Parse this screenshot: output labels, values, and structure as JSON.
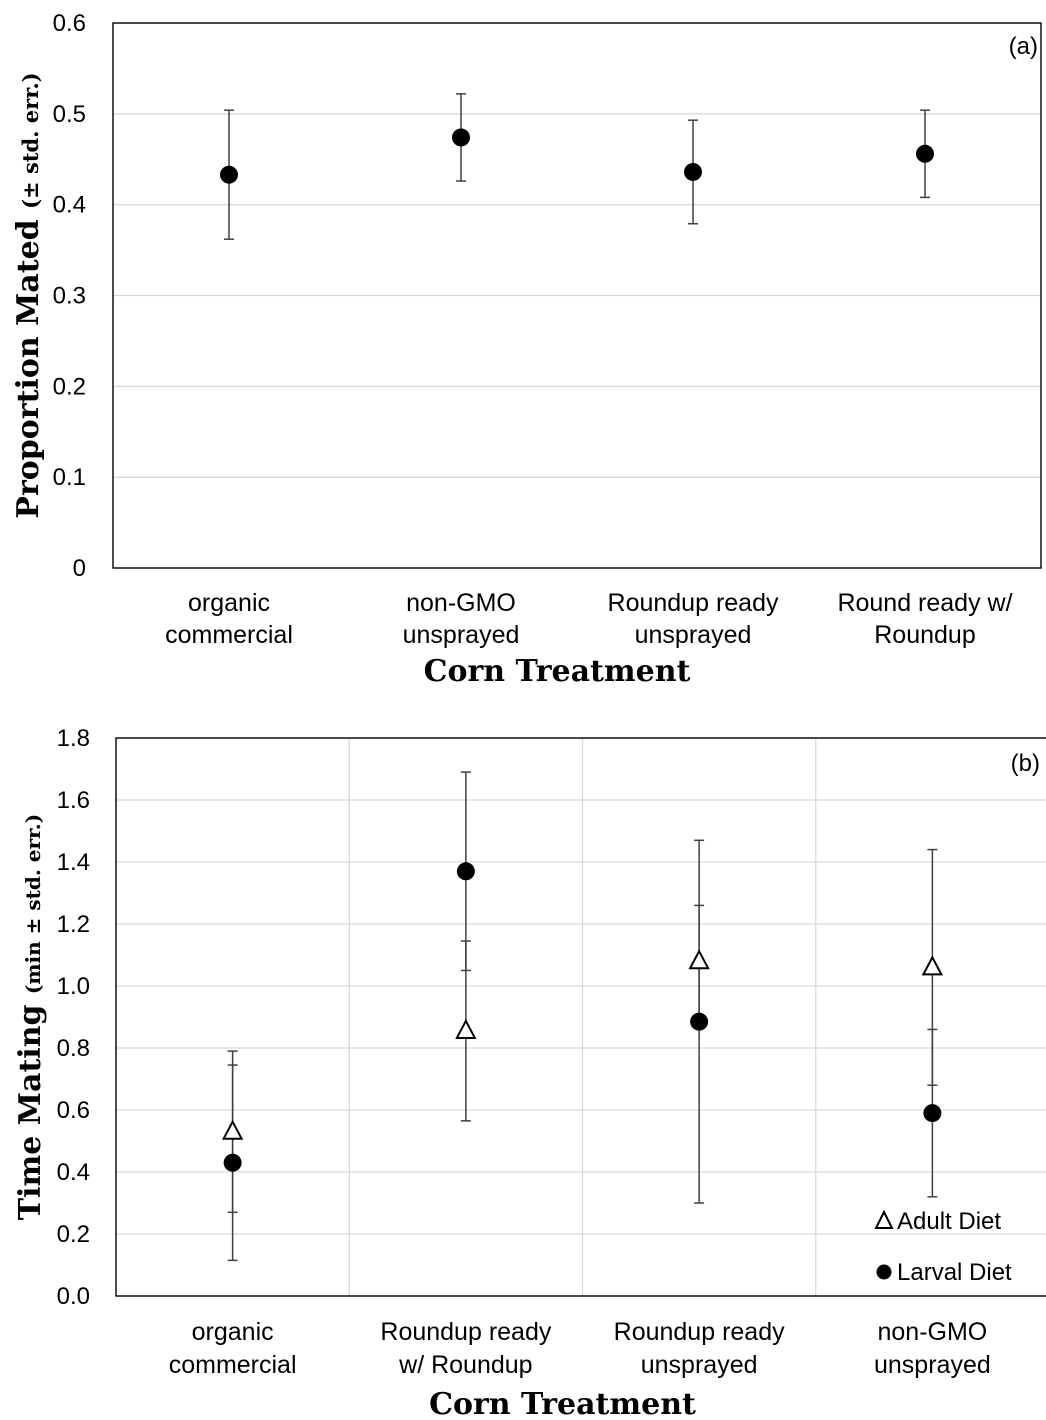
{
  "chart_data": [
    {
      "type": "scatter",
      "panel_label": "(a)",
      "ylabel": {
        "main": "Proportion Mated",
        "sub": "(± std. err.)"
      },
      "xlabel": "Corn Treatment",
      "ylim": [
        0,
        0.6
      ],
      "yticks": [
        "0",
        "0.1",
        "0.2",
        "0.3",
        "0.4",
        "0.5",
        "0.6"
      ],
      "grid": "horizontal",
      "categories": [
        [
          "organic",
          "commercial"
        ],
        [
          "non-GMO",
          "unsprayed"
        ],
        [
          "Roundup ready",
          "unsprayed"
        ],
        [
          "Round ready w/",
          "Roundup"
        ]
      ],
      "series": [
        {
          "marker": "circle",
          "values": [
            0.433,
            0.474,
            0.436,
            0.456
          ],
          "err": [
            0.071,
            0.048,
            0.057,
            0.048
          ]
        }
      ]
    },
    {
      "type": "scatter",
      "panel_label": "(b)",
      "ylabel": {
        "main": "Time Mating",
        "sub": "(min ± std. err.)"
      },
      "xlabel": "Corn Treatment",
      "ylim": [
        0,
        1.8
      ],
      "yticks": [
        "0.0",
        "0.2",
        "0.4",
        "0.6",
        "0.8",
        "1.0",
        "1.2",
        "1.4",
        "1.6",
        "1.8"
      ],
      "grid": "both",
      "categories": [
        [
          "organic",
          "commercial"
        ],
        [
          "Roundup ready",
          "w/ Roundup"
        ],
        [
          "Roundup ready",
          "unsprayed"
        ],
        [
          "non-GMO",
          "unsprayed"
        ]
      ],
      "legend": {
        "position": "bottom-right"
      },
      "series": [
        {
          "name": "Adult Diet",
          "marker": "triangle-open",
          "values": [
            0.53,
            0.855,
            1.08,
            1.06
          ],
          "err": [
            0.26,
            0.29,
            0.18,
            0.38
          ]
        },
        {
          "name": "Larval Diet",
          "marker": "circle",
          "values": [
            0.43,
            1.37,
            0.885,
            0.59
          ],
          "err": [
            0.315,
            0.32,
            0.585,
            0.27
          ]
        }
      ]
    }
  ]
}
